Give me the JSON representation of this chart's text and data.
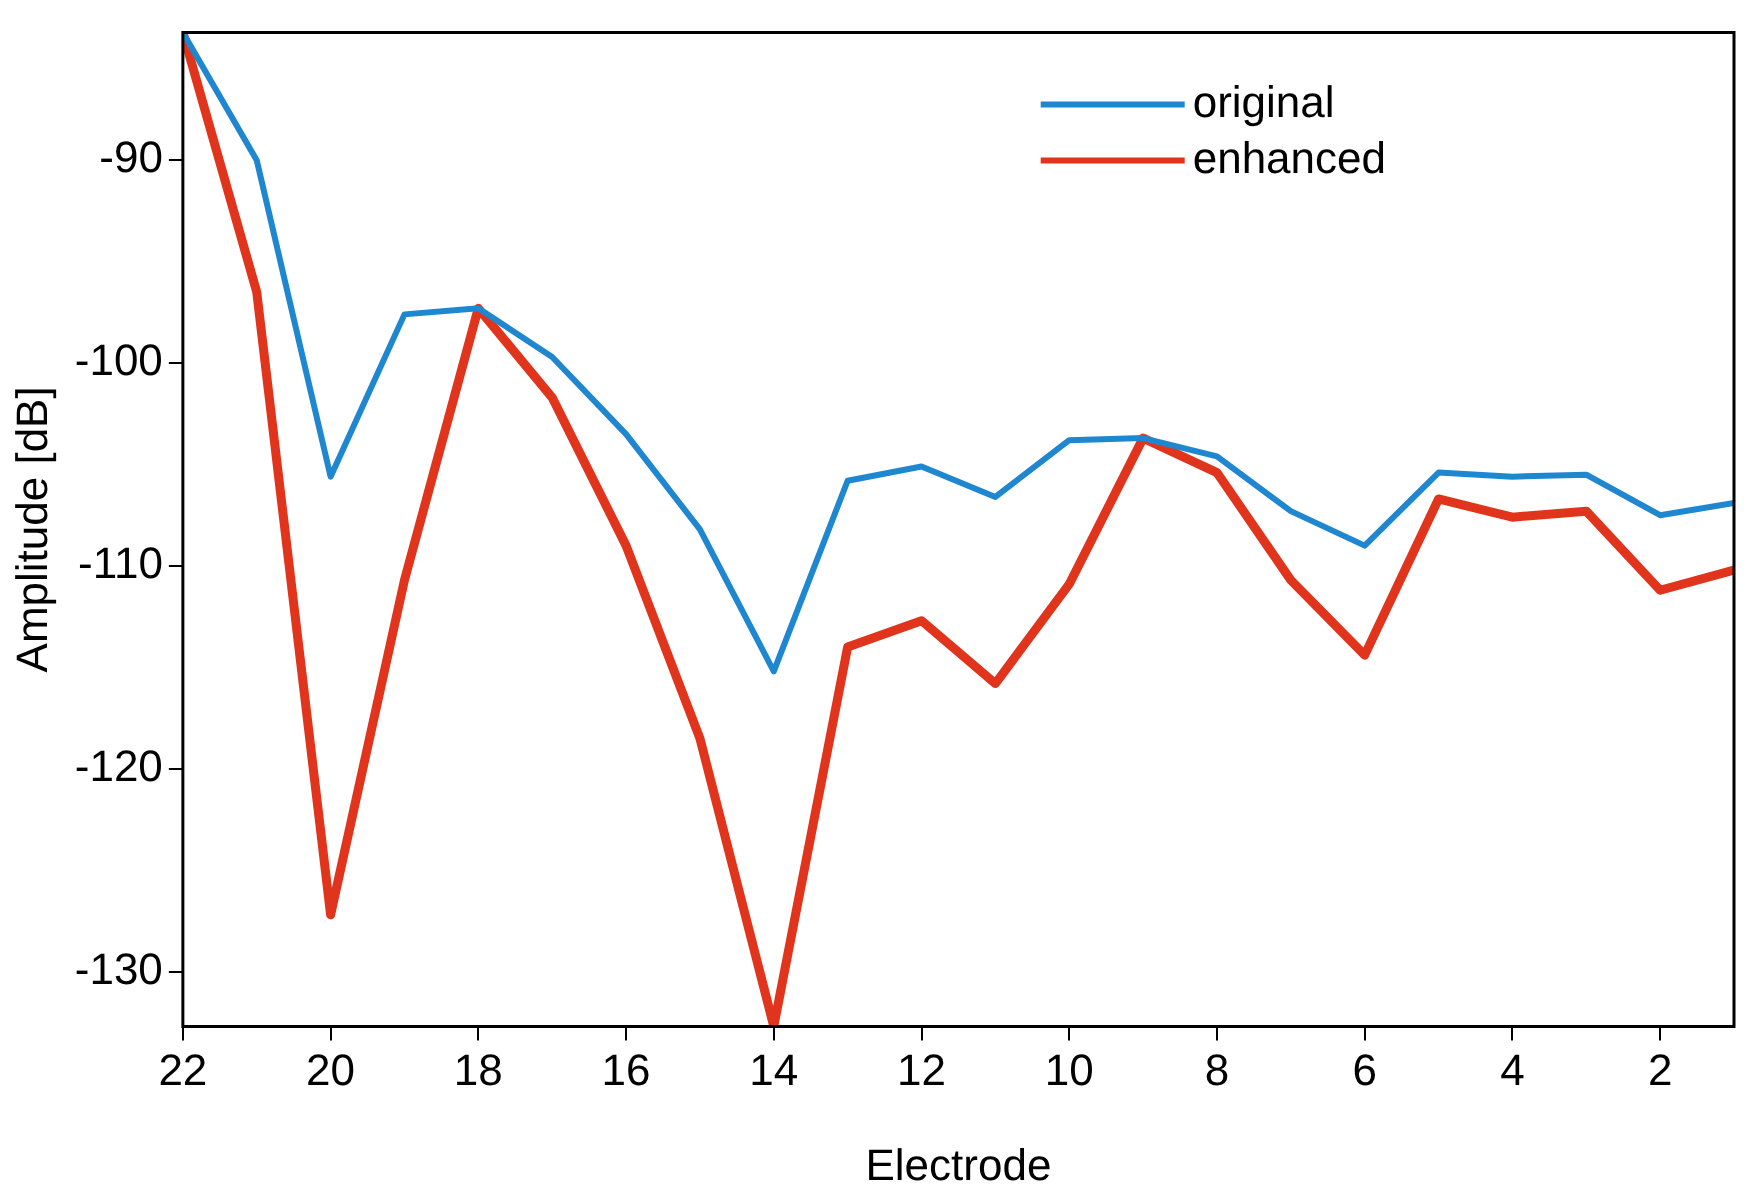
{
  "chart_data": {
    "type": "line",
    "xlabel": "Electrode",
    "ylabel": "Amplitude [dB]",
    "x": [
      22,
      21,
      20,
      19,
      18,
      17,
      16,
      15,
      14,
      13,
      12,
      11,
      10,
      9,
      8,
      7,
      6,
      5,
      4,
      3,
      2,
      1
    ],
    "series": [
      {
        "name": "original",
        "color": "#1f86d0",
        "values": [
          -83.7,
          -90,
          -105.6,
          -97.6,
          -97.3,
          -99.7,
          -103.5,
          -108.2,
          -115.2,
          -105.8,
          -105.1,
          -106.6,
          -103.8,
          -103.7,
          -104.6,
          -107.3,
          -109,
          -105.4,
          -105.6,
          -105.5,
          -107.5,
          -106.9
        ]
      },
      {
        "name": "enhanced",
        "color": "#e0341c",
        "values": [
          -83.7,
          -96.5,
          -127.2,
          -110.7,
          -97.3,
          -101.7,
          -109,
          -118.5,
          -132.7,
          -114,
          -112.7,
          -115.8,
          -110.9,
          -103.7,
          -105.4,
          -110.7,
          -114.4,
          -106.7,
          -107.6,
          -107.3,
          -111.2,
          -110.2
        ]
      }
    ],
    "xlim": [
      22,
      1
    ],
    "xticks": [
      22,
      20,
      18,
      16,
      14,
      12,
      10,
      8,
      6,
      4,
      2
    ],
    "ylim": [
      -132.7,
      -83.7
    ],
    "yticks": [
      -130,
      -120,
      -110,
      -100,
      -90
    ],
    "grid": false,
    "legend": "top right",
    "marker": "none",
    "line_style": "solid"
  }
}
